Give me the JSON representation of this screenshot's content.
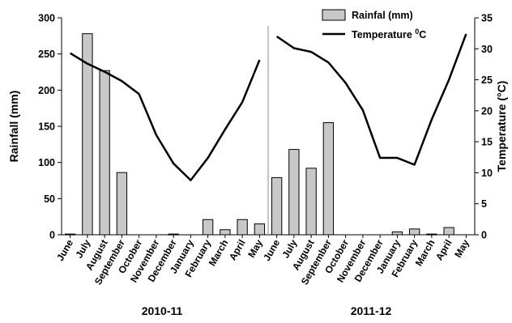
{
  "chart_data": {
    "type": "bar",
    "title": "",
    "ylabel": "Rainfall (mm)",
    "y2label": "Temperature (°C)",
    "ylim": [
      0,
      300
    ],
    "y2lim": [
      0,
      35
    ],
    "yticks": [
      "0",
      "50",
      "100",
      "150",
      "200",
      "250",
      "300"
    ],
    "y2ticks": [
      "0",
      "5",
      "10",
      "15",
      "20",
      "25",
      "30",
      "35"
    ],
    "legend": {
      "placement": "top-right",
      "rain_label": "Rainfal (mm)",
      "temp_label_main": "Temperature ",
      "temp_label_sup": "0",
      "temp_label_end": "C"
    },
    "bar_color": "#c8c8c8",
    "line_color": "#000000",
    "panels": [
      {
        "label": "2010-11",
        "categories": [
          "June",
          "July",
          "August",
          "September",
          "October",
          "November",
          "December",
          "January",
          "February",
          "March",
          "April",
          "May"
        ],
        "series": [
          {
            "name": "Rainfal (mm)",
            "kind": "bar",
            "values": [
              1,
              278,
              227,
              86,
              0,
              0,
              1,
              0,
              21,
              7,
              21,
              15
            ]
          },
          {
            "name": "Temperature 0C",
            "kind": "line",
            "values": [
              29.3,
              27.6,
              26.3,
              24.8,
              22.7,
              16.1,
              11.5,
              8.8,
              12.4,
              17.0,
              21.4,
              28.2
            ]
          }
        ]
      },
      {
        "label": "2011-12",
        "categories": [
          "June",
          "July",
          "August",
          "September",
          "October",
          "November",
          "December",
          "January",
          "February",
          "March",
          "April",
          "May"
        ],
        "series": [
          {
            "name": "Rainfal (mm)",
            "kind": "bar",
            "values": [
              79,
              118,
              92,
              155,
              0,
              0,
              0,
              4,
              8,
              1,
              10,
              0
            ]
          },
          {
            "name": "Temperature 0C",
            "kind": "line",
            "values": [
              32.0,
              30.1,
              29.5,
              27.8,
              24.5,
              20.1,
              12.4,
              12.4,
              11.3,
              18.6,
              25.0,
              32.4
            ]
          }
        ]
      }
    ]
  }
}
